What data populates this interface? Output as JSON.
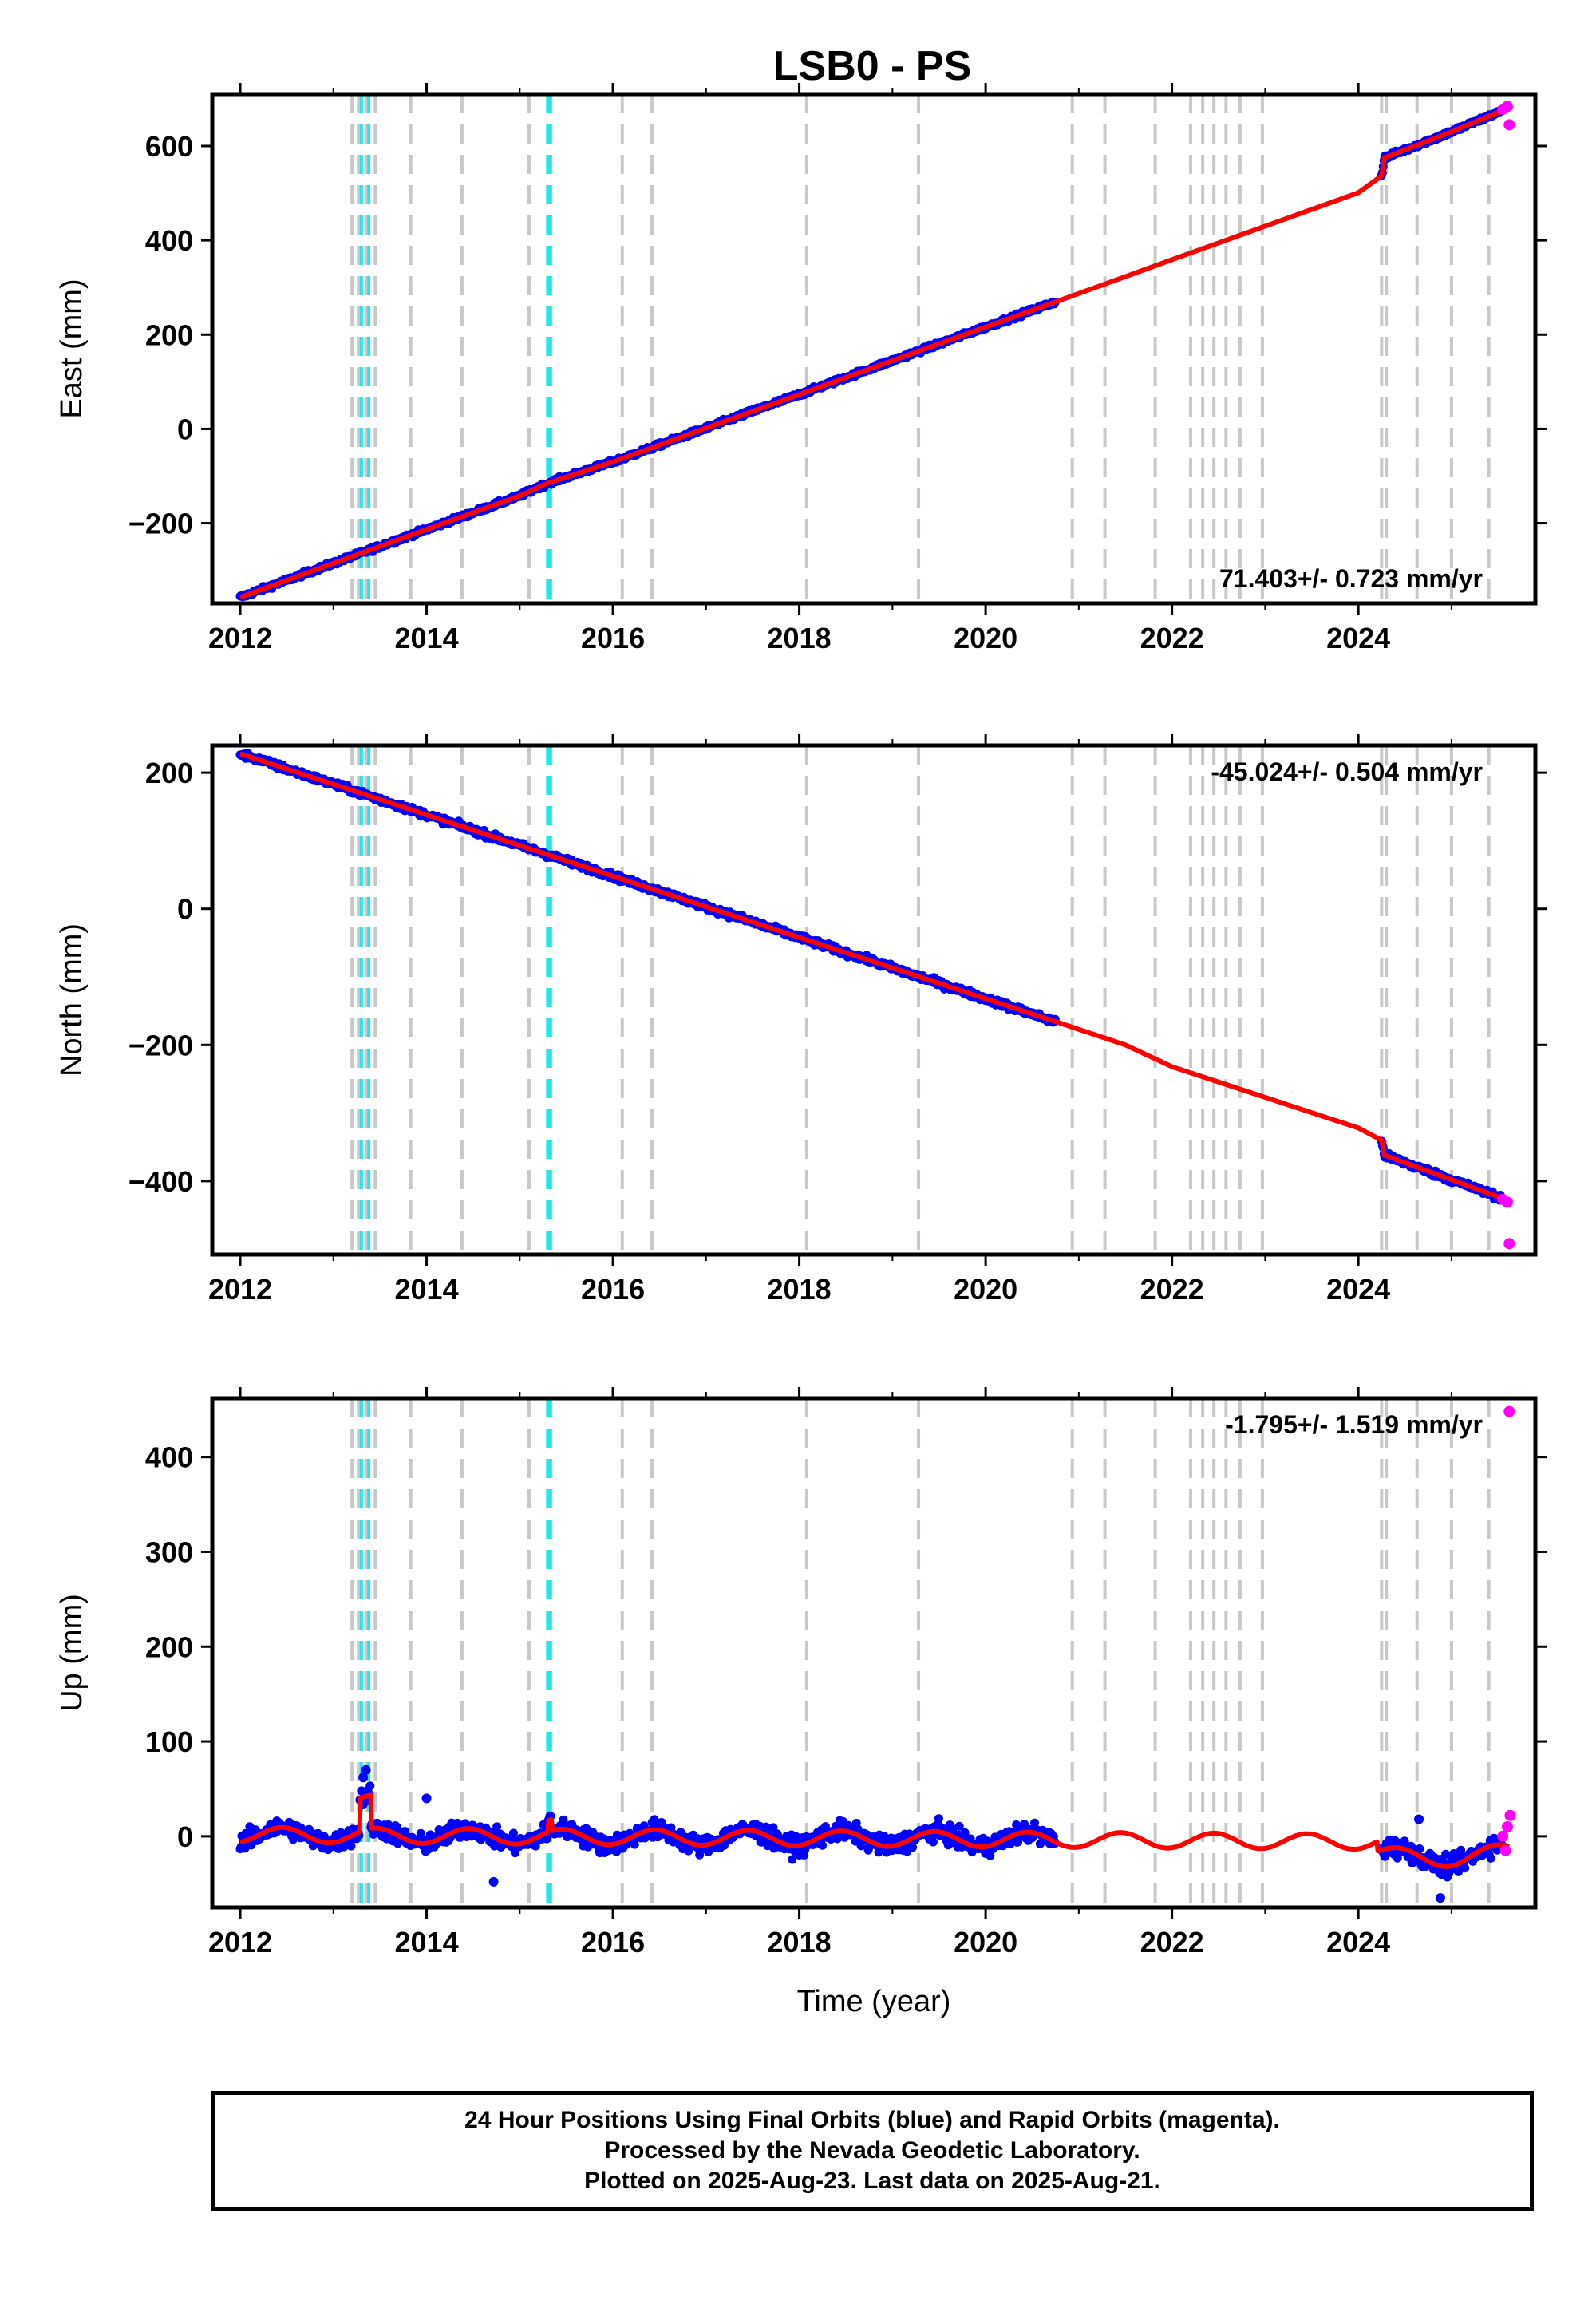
{
  "title": "LSB0 - PS",
  "colors": {
    "final_orbits": "#0000ff",
    "rapid_orbits": "#ff00ff",
    "model": "#ff0000",
    "event_gray": "#c8c8c8",
    "event_cyan": "#20e8e8"
  },
  "chart_data": [
    {
      "type": "scatter",
      "name": "east",
      "ylabel": "East (mm)",
      "xlabel": "",
      "xlim": [
        2011.7,
        2025.9
      ],
      "ylim": [
        -370,
        710
      ],
      "yticks": [
        -200,
        0,
        200,
        400,
        600
      ],
      "xticks": [
        2012,
        2014,
        2016,
        2018,
        2020,
        2022,
        2024
      ],
      "rate": "71.403+/- 0.723 mm/yr",
      "rate_position": "bottom-right",
      "series": [
        {
          "name": "model",
          "points": [
            [
              2012.0,
              -357
            ],
            [
              2013.0,
              -285
            ],
            [
              2014.0,
              -213
            ],
            [
              2015.0,
              -142
            ],
            [
              2015.3,
              -115
            ],
            [
              2016.0,
              -70
            ],
            [
              2017.0,
              2
            ],
            [
              2018.0,
              73
            ],
            [
              2019.0,
              145
            ],
            [
              2020.0,
              216
            ],
            [
              2020.8,
              273
            ],
            [
              2021.5,
              323
            ],
            [
              2022.0,
              359
            ],
            [
              2023.0,
              430
            ],
            [
              2024.0,
              501
            ],
            [
              2024.25,
              537
            ],
            [
              2024.28,
              575
            ],
            [
              2025.0,
              630
            ],
            [
              2025.6,
              680
            ]
          ]
        },
        {
          "name": "final",
          "segments": [
            [
              2012.0,
              2020.75
            ],
            [
              2024.25,
              2025.55
            ]
          ]
        },
        {
          "name": "rapid",
          "points": [
            [
              2025.55,
              678
            ],
            [
              2025.6,
              684
            ],
            [
              2025.62,
              645
            ]
          ]
        }
      ]
    },
    {
      "type": "scatter",
      "name": "north",
      "ylabel": "North (mm)",
      "xlabel": "",
      "xlim": [
        2011.7,
        2025.9
      ],
      "ylim": [
        -508,
        240
      ],
      "yticks": [
        -400,
        -200,
        0,
        200
      ],
      "xticks": [
        2012,
        2014,
        2016,
        2018,
        2020,
        2022,
        2024
      ],
      "rate": "-45.024+/- 0.504 mm/yr",
      "rate_position": "top-right",
      "series": [
        {
          "name": "model",
          "points": [
            [
              2012.0,
              228
            ],
            [
              2013.0,
              183
            ],
            [
              2014.0,
              138
            ],
            [
              2015.0,
              93
            ],
            [
              2016.0,
              48
            ],
            [
              2017.0,
              3
            ],
            [
              2018.0,
              -42
            ],
            [
              2019.0,
              -87
            ],
            [
              2020.0,
              -132
            ],
            [
              2020.8,
              -168
            ],
            [
              2021.5,
              -200
            ],
            [
              2022.0,
              -232
            ],
            [
              2023.0,
              -277
            ],
            [
              2024.0,
              -322
            ],
            [
              2024.25,
              -340
            ],
            [
              2024.28,
              -362
            ],
            [
              2025.0,
              -398
            ],
            [
              2025.6,
              -428
            ]
          ]
        },
        {
          "name": "final",
          "segments": [
            [
              2012.0,
              2020.75
            ],
            [
              2024.25,
              2025.55
            ]
          ]
        },
        {
          "name": "rapid",
          "points": [
            [
              2025.55,
              -427
            ],
            [
              2025.6,
              -431
            ],
            [
              2025.62,
              -492
            ]
          ]
        }
      ]
    },
    {
      "type": "scatter",
      "name": "up",
      "ylabel": "Up (mm)",
      "xlabel": "Time (year)",
      "xlim": [
        2011.7,
        2025.9
      ],
      "ylim": [
        -75,
        462
      ],
      "yticks": [
        0,
        100,
        200,
        300,
        400
      ],
      "xticks": [
        2012,
        2014,
        2016,
        2018,
        2020,
        2022,
        2024
      ],
      "rate": "-1.795+/- 1.519 mm/yr",
      "rate_position": "top-right",
      "series": [
        {
          "name": "model",
          "points": []
        },
        {
          "name": "final",
          "segments": [
            [
              2012.0,
              2020.75
            ],
            [
              2024.25,
              2025.55
            ]
          ]
        },
        {
          "name": "rapid",
          "points": [
            [
              2025.55,
              0
            ],
            [
              2025.6,
              10
            ],
            [
              2025.62,
              448
            ],
            [
              2025.58,
              -15
            ],
            [
              2025.63,
              22
            ]
          ]
        },
        {
          "name": "outliers",
          "points": [
            [
              2013.35,
              70
            ],
            [
              2013.32,
              62
            ],
            [
              2014.0,
              40
            ],
            [
              2014.72,
              -48
            ],
            [
              2024.65,
              18
            ],
            [
              2024.88,
              -65
            ]
          ]
        }
      ]
    }
  ],
  "event_lines": {
    "gray": [
      2013.2,
      2013.27,
      2013.35,
      2013.45,
      2013.83,
      2014.38,
      2015.1,
      2016.1,
      2016.42,
      2018.08,
      2019.28,
      2020.93,
      2021.28,
      2021.82,
      2022.2,
      2022.33,
      2022.45,
      2022.58,
      2022.73,
      2022.97,
      2024.25,
      2024.3,
      2024.63,
      2025.0,
      2025.4
    ],
    "cyan": [
      2013.3,
      2013.38,
      2015.3,
      2015.33
    ]
  },
  "footer": {
    "line1": "24 Hour Positions Using Final Orbits (blue) and Rapid Orbits (magenta).",
    "line2": "Processed by the Nevada Geodetic Laboratory.",
    "line3": "Plotted on 2025-Aug-23. Last data on 2025-Aug-21."
  }
}
